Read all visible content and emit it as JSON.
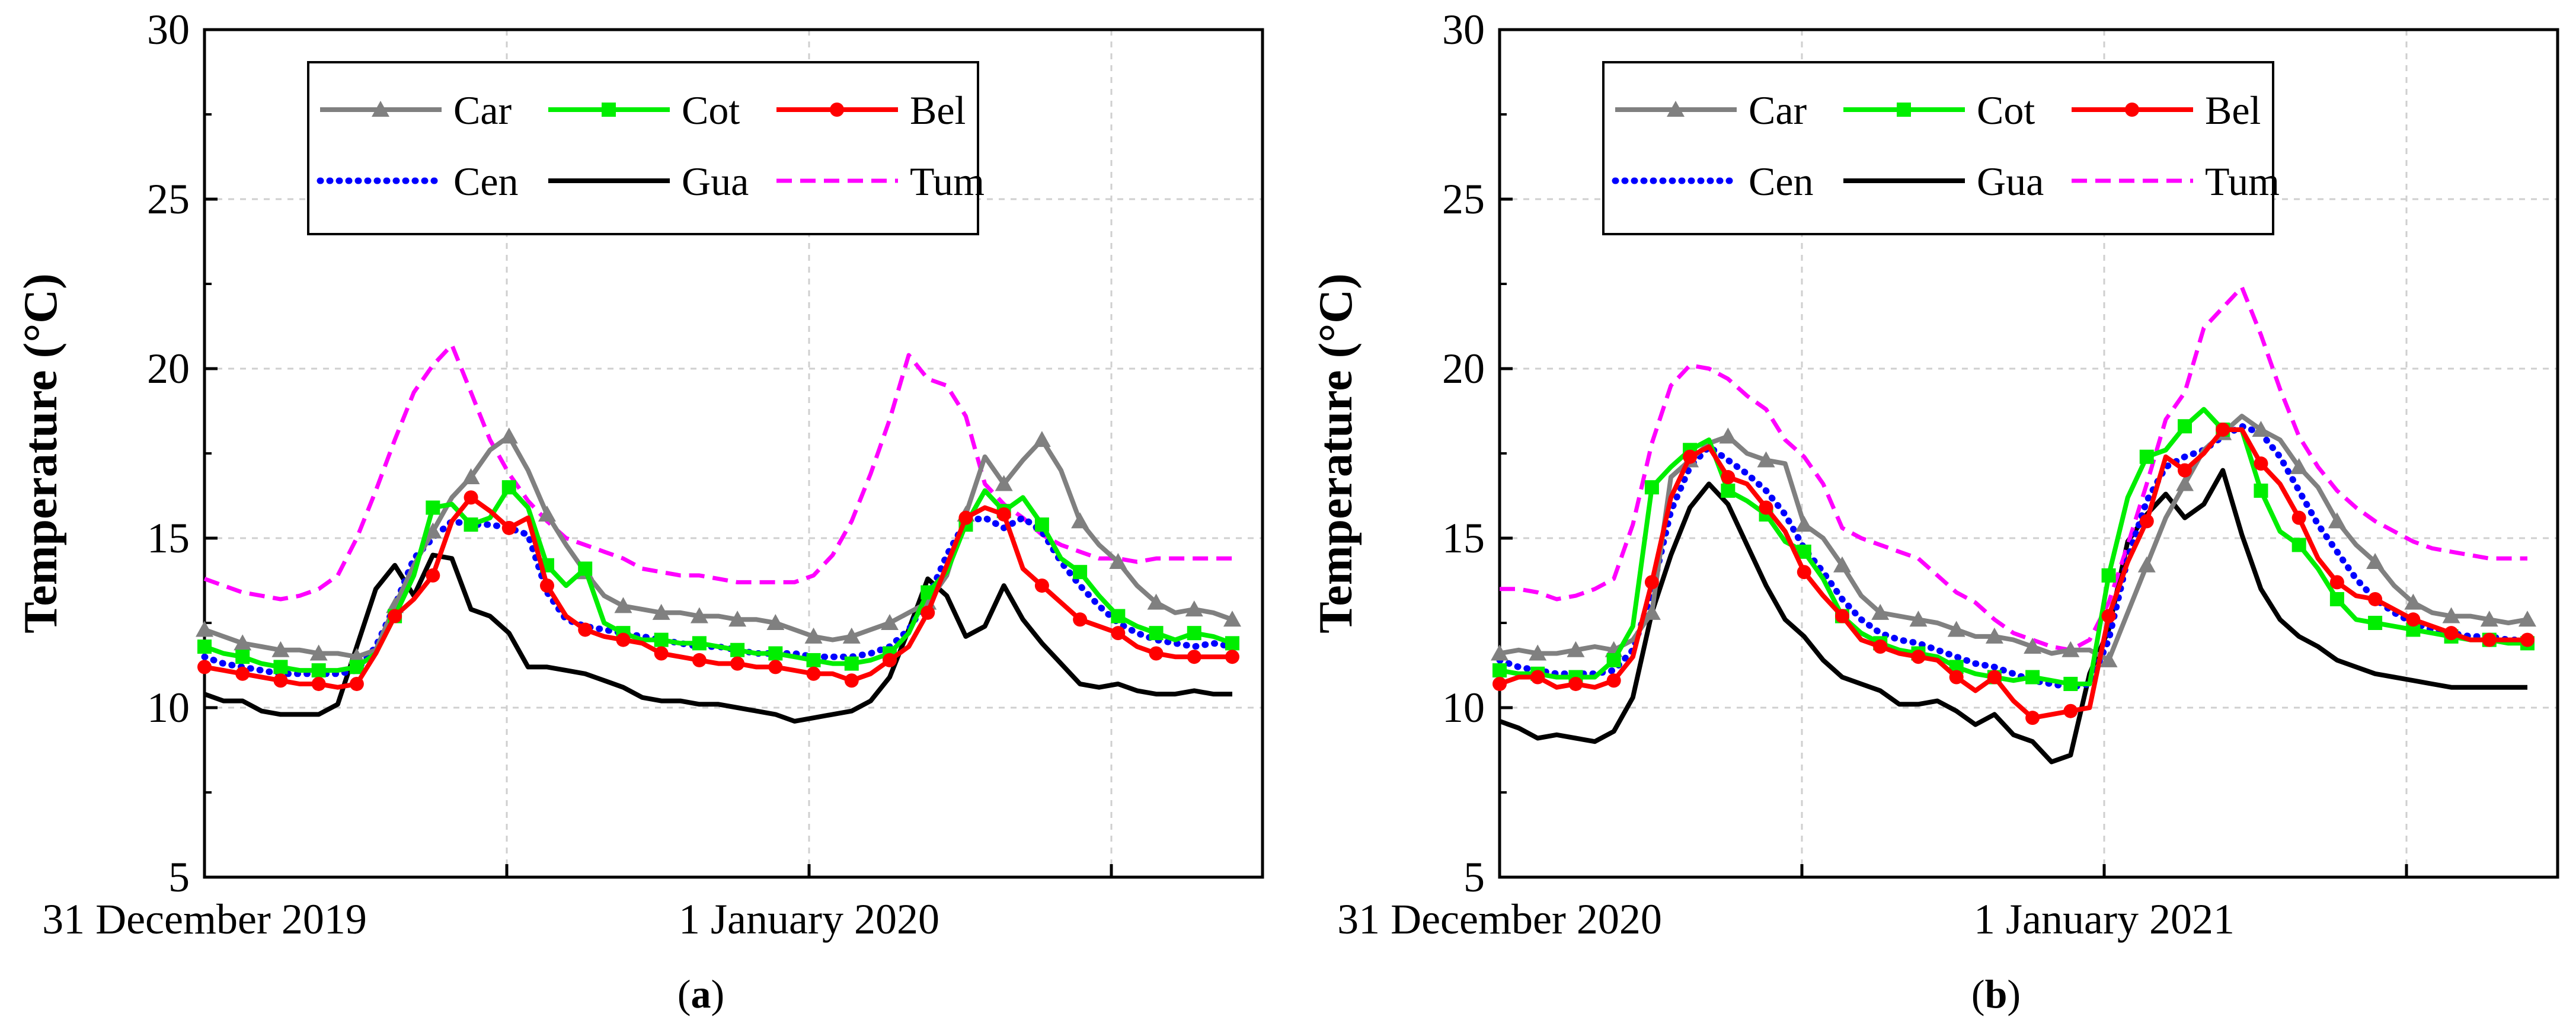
{
  "chart_data": [
    {
      "type": "line",
      "caption": "(a)",
      "caption_paren_open": "(",
      "caption_letter": "a",
      "caption_paren_close": ")",
      "ylabel": "Temperature (°C)",
      "ylim": [
        5,
        30
      ],
      "yticks": [
        5,
        10,
        15,
        20,
        25,
        30
      ],
      "xlim": [
        0,
        1.75
      ],
      "x_tick_labels": [
        {
          "label": "31 December 2019",
          "x": 0
        },
        {
          "label": "1 January 2020",
          "x": 1
        }
      ],
      "series": [
        {
          "name": "Car",
          "color": "#808080",
          "style": "solid-triangle",
          "values": [
            12.3,
            12.1,
            11.9,
            11.8,
            11.7,
            11.7,
            11.6,
            11.6,
            11.5,
            11.7,
            13.0,
            14.2,
            15.2,
            16.2,
            16.8,
            17.6,
            18.0,
            17.0,
            15.7,
            14.8,
            14.0,
            13.3,
            13.0,
            12.9,
            12.8,
            12.8,
            12.7,
            12.7,
            12.6,
            12.6,
            12.5,
            12.3,
            12.1,
            12.0,
            12.1,
            12.3,
            12.5,
            12.8,
            13.1,
            13.9,
            15.7,
            17.4,
            16.6,
            17.3,
            17.9,
            17.0,
            15.5,
            14.8,
            14.3,
            13.6,
            13.1,
            12.8,
            12.9,
            12.8,
            12.6
          ]
        },
        {
          "name": "Cot",
          "color": "#00ee00",
          "style": "solid-square",
          "values": [
            11.8,
            11.6,
            11.5,
            11.3,
            11.2,
            11.1,
            11.1,
            11.1,
            11.2,
            11.6,
            12.7,
            13.9,
            15.9,
            16.0,
            15.4,
            15.6,
            16.5,
            15.9,
            14.2,
            13.6,
            14.1,
            12.5,
            12.2,
            12.0,
            12.0,
            11.9,
            11.9,
            11.8,
            11.7,
            11.6,
            11.6,
            11.5,
            11.4,
            11.3,
            11.3,
            11.4,
            11.6,
            12.2,
            13.4,
            14.0,
            15.4,
            16.4,
            15.8,
            16.2,
            15.4,
            14.4,
            14.0,
            13.3,
            12.7,
            12.4,
            12.2,
            12.0,
            12.2,
            12.1,
            11.9
          ]
        },
        {
          "name": "Bel",
          "color": "#ff0000",
          "style": "solid-circle",
          "values": [
            11.2,
            11.1,
            11.0,
            10.9,
            10.8,
            10.7,
            10.7,
            10.6,
            10.7,
            11.6,
            12.7,
            13.2,
            13.9,
            15.5,
            16.2,
            15.8,
            15.3,
            15.6,
            13.6,
            12.7,
            12.3,
            12.1,
            12.0,
            11.9,
            11.6,
            11.5,
            11.4,
            11.3,
            11.3,
            11.2,
            11.2,
            11.1,
            11.0,
            11.0,
            10.8,
            11.0,
            11.4,
            11.8,
            12.8,
            14.2,
            15.6,
            15.9,
            15.7,
            14.1,
            13.6,
            13.1,
            12.6,
            12.4,
            12.2,
            11.8,
            11.6,
            11.5,
            11.5,
            11.5,
            11.5
          ]
        },
        {
          "name": "Cen",
          "color": "#0000ff",
          "style": "dotted",
          "values": [
            11.5,
            11.3,
            11.2,
            11.1,
            11.0,
            11.0,
            11.0,
            11.0,
            11.1,
            11.8,
            13.0,
            14.4,
            15.0,
            15.5,
            15.4,
            15.4,
            15.3,
            15.1,
            13.4,
            12.6,
            12.4,
            12.3,
            12.2,
            12.1,
            12.0,
            11.9,
            11.8,
            11.8,
            11.7,
            11.6,
            11.6,
            11.6,
            11.5,
            11.5,
            11.5,
            11.6,
            11.8,
            12.3,
            13.2,
            14.5,
            15.5,
            15.6,
            15.3,
            15.6,
            15.2,
            14.3,
            13.6,
            13.0,
            12.5,
            12.2,
            12.0,
            11.9,
            11.8,
            11.9,
            11.8
          ]
        },
        {
          "name": "Gua",
          "color": "#000000",
          "style": "solid",
          "values": [
            10.4,
            10.2,
            10.2,
            9.9,
            9.8,
            9.8,
            9.8,
            10.1,
            11.8,
            13.5,
            14.2,
            13.3,
            14.5,
            14.4,
            12.9,
            12.7,
            12.2,
            11.2,
            11.2,
            11.1,
            11.0,
            10.8,
            10.6,
            10.3,
            10.2,
            10.2,
            10.1,
            10.1,
            10.0,
            9.9,
            9.8,
            9.6,
            9.7,
            9.8,
            9.9,
            10.2,
            10.9,
            12.3,
            13.8,
            13.3,
            12.1,
            12.4,
            13.6,
            12.6,
            11.9,
            11.3,
            10.7,
            10.6,
            10.7,
            10.5,
            10.4,
            10.4,
            10.5,
            10.4,
            10.4
          ]
        },
        {
          "name": "Tum",
          "color": "#ff00ff",
          "style": "dashed",
          "values": [
            13.8,
            13.6,
            13.4,
            13.3,
            13.2,
            13.3,
            13.5,
            13.9,
            15.0,
            16.4,
            17.9,
            19.3,
            20.1,
            20.7,
            19.3,
            17.9,
            16.9,
            16.1,
            15.5,
            15.0,
            14.8,
            14.6,
            14.4,
            14.1,
            14.0,
            13.9,
            13.9,
            13.8,
            13.7,
            13.7,
            13.7,
            13.7,
            13.9,
            14.5,
            15.5,
            16.9,
            18.5,
            20.4,
            19.7,
            19.5,
            18.6,
            16.6,
            16.0,
            15.6,
            15.1,
            14.8,
            14.6,
            14.4,
            14.4,
            14.3,
            14.4,
            14.4,
            14.4,
            14.4,
            14.4
          ]
        }
      ]
    },
    {
      "type": "line",
      "caption": "(b)",
      "caption_paren_open": "(",
      "caption_letter": "b",
      "caption_paren_close": ")",
      "ylabel": "Temperature (°C)",
      "ylim": [
        5,
        30
      ],
      "yticks": [
        5,
        10,
        15,
        20,
        25,
        30
      ],
      "xlim": [
        0,
        1.75
      ],
      "x_tick_labels": [
        {
          "label": "31 December 2020",
          "x": 0
        },
        {
          "label": "1 January 2021",
          "x": 1
        }
      ],
      "series": [
        {
          "name": "Car",
          "color": "#808080",
          "style": "solid-triangle",
          "values": [
            11.6,
            11.7,
            11.6,
            11.6,
            11.7,
            11.8,
            11.7,
            12.0,
            12.8,
            16.8,
            17.3,
            17.8,
            18.0,
            17.5,
            17.3,
            17.2,
            15.4,
            15.0,
            14.2,
            13.3,
            12.8,
            12.7,
            12.6,
            12.5,
            12.3,
            12.1,
            12.1,
            12.0,
            11.8,
            11.6,
            11.7,
            11.7,
            11.4,
            12.8,
            14.2,
            15.6,
            16.6,
            17.6,
            18.1,
            18.6,
            18.2,
            17.9,
            17.1,
            16.5,
            15.5,
            14.8,
            14.3,
            13.6,
            13.1,
            12.8,
            12.7,
            12.7,
            12.6,
            12.5,
            12.6
          ]
        },
        {
          "name": "Cot",
          "color": "#00ee00",
          "style": "solid-square",
          "values": [
            11.1,
            11.0,
            11.0,
            10.9,
            10.9,
            10.9,
            11.4,
            12.4,
            16.5,
            17.1,
            17.6,
            17.9,
            16.4,
            16.1,
            15.7,
            14.9,
            14.6,
            13.8,
            12.7,
            12.2,
            11.9,
            11.7,
            11.6,
            11.5,
            11.2,
            11.0,
            10.9,
            10.8,
            10.9,
            10.8,
            10.7,
            10.7,
            13.9,
            16.2,
            17.4,
            17.6,
            18.3,
            18.8,
            18.2,
            18.2,
            16.4,
            15.2,
            14.8,
            14.1,
            13.2,
            12.6,
            12.5,
            12.4,
            12.3,
            12.2,
            12.1,
            12.0,
            12.0,
            11.9,
            11.9
          ]
        },
        {
          "name": "Bel",
          "color": "#ff0000",
          "style": "solid-circle",
          "values": [
            10.7,
            10.9,
            10.9,
            10.6,
            10.7,
            10.6,
            10.8,
            11.5,
            13.7,
            16.2,
            17.4,
            17.7,
            16.8,
            16.6,
            15.9,
            15.2,
            14.0,
            13.3,
            12.7,
            12.0,
            11.8,
            11.6,
            11.5,
            11.4,
            10.9,
            10.5,
            10.9,
            10.2,
            9.7,
            9.8,
            9.9,
            10.0,
            12.7,
            14.3,
            15.5,
            17.4,
            17.0,
            17.5,
            18.2,
            18.2,
            17.2,
            16.6,
            15.6,
            14.4,
            13.7,
            13.3,
            13.2,
            12.9,
            12.6,
            12.4,
            12.2,
            12.0,
            12.0,
            12.0,
            12.0
          ]
        },
        {
          "name": "Cen",
          "color": "#0000ff",
          "style": "dotted",
          "values": [
            11.4,
            11.2,
            11.1,
            11.0,
            11.0,
            11.0,
            11.1,
            11.7,
            13.4,
            15.8,
            17.1,
            17.7,
            17.3,
            16.9,
            16.4,
            15.7,
            14.7,
            14.0,
            13.2,
            12.6,
            12.2,
            12.0,
            11.9,
            11.7,
            11.5,
            11.3,
            11.2,
            11.0,
            10.8,
            10.7,
            10.6,
            10.7,
            12.0,
            14.4,
            16.1,
            17.1,
            17.4,
            17.6,
            18.0,
            18.3,
            18.1,
            17.4,
            16.4,
            15.4,
            14.6,
            13.8,
            13.2,
            12.8,
            12.5,
            12.3,
            12.2,
            12.1,
            12.1,
            12.0,
            12.0
          ]
        },
        {
          "name": "Gua",
          "color": "#000000",
          "style": "solid",
          "values": [
            9.6,
            9.4,
            9.1,
            9.2,
            9.1,
            9.0,
            9.3,
            10.3,
            12.8,
            14.5,
            15.9,
            16.6,
            16.0,
            14.8,
            13.6,
            12.6,
            12.1,
            11.4,
            10.9,
            10.7,
            10.5,
            10.1,
            10.1,
            10.2,
            9.9,
            9.5,
            9.8,
            9.2,
            9.0,
            8.4,
            8.6,
            11.0,
            12.3,
            14.9,
            15.7,
            16.3,
            15.6,
            16.0,
            17.0,
            15.1,
            13.5,
            12.6,
            12.1,
            11.8,
            11.4,
            11.2,
            11.0,
            10.9,
            10.8,
            10.7,
            10.6,
            10.6,
            10.6,
            10.6,
            10.6
          ]
        },
        {
          "name": "Tum",
          "color": "#ff00ff",
          "style": "dashed",
          "values": [
            13.5,
            13.5,
            13.4,
            13.2,
            13.3,
            13.5,
            13.8,
            15.4,
            17.8,
            19.5,
            20.1,
            20.0,
            19.7,
            19.2,
            18.8,
            17.9,
            17.4,
            16.6,
            15.3,
            15.0,
            14.8,
            14.6,
            14.4,
            13.9,
            13.4,
            13.1,
            12.6,
            12.2,
            12.0,
            11.8,
            11.7,
            12.0,
            13.1,
            14.8,
            16.6,
            18.5,
            19.3,
            21.2,
            21.8,
            22.4,
            21.0,
            19.4,
            18.0,
            17.1,
            16.4,
            15.9,
            15.5,
            15.2,
            14.9,
            14.7,
            14.6,
            14.5,
            14.4,
            14.4,
            14.4
          ]
        }
      ]
    }
  ]
}
